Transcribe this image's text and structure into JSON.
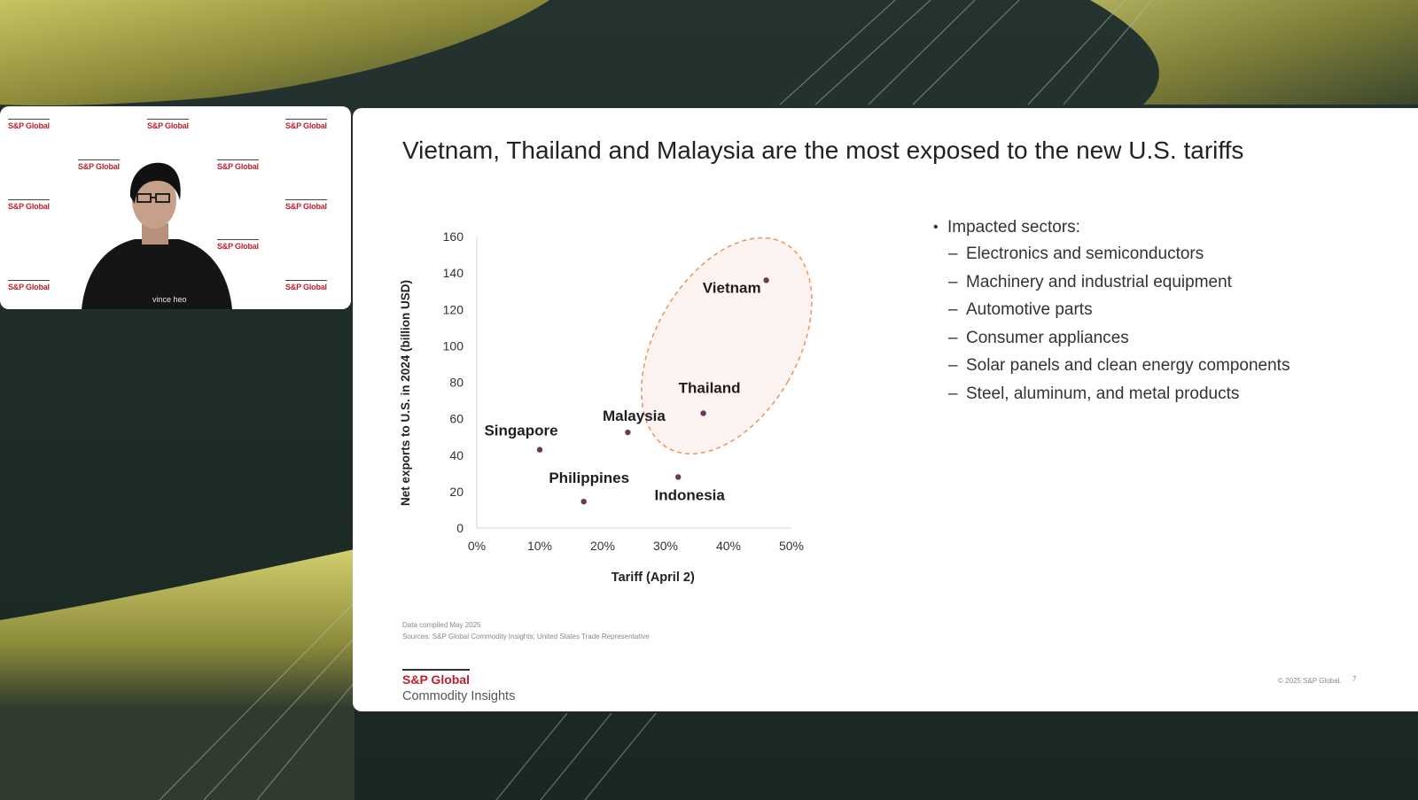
{
  "meeting": {
    "presenter_name": "vince heo",
    "logo_text": "S&P Global"
  },
  "slide": {
    "title": "Vietnam, Thailand and Malaysia are the most exposed to the new U.S. tariffs",
    "bullets": {
      "heading": "Impacted sectors:",
      "items": [
        "Electronics and semiconductors",
        "Machinery and industrial equipment",
        "Automotive parts",
        "Consumer appliances",
        "Solar panels and clean energy components",
        "Steel, aluminum, and metal products"
      ]
    },
    "footnotes": {
      "date": "Data compiled May 2025",
      "sources": "Sources: S&P Global Commodity Insights; United States Trade Representative"
    },
    "brand": {
      "name": "S&P Global",
      "sub": "Commodity Insights"
    },
    "copyright": "© 2025 S&P Global.",
    "page_number": "7"
  },
  "colors": {
    "brand_red": "#c0202c",
    "point": "#6b3856",
    "highlight_fill": "#fdf3f1",
    "highlight_stroke": "#e8955a"
  },
  "chart_data": {
    "type": "scatter",
    "xlabel": "Tariff (April 2)",
    "ylabel": "Net exports to U.S. in 2024 (billion USD)",
    "xlim": [
      0,
      0.5
    ],
    "ylim": [
      0,
      160
    ],
    "xticks": [
      0,
      0.1,
      0.2,
      0.3,
      0.4,
      0.5
    ],
    "xtick_labels": [
      "0%",
      "10%",
      "20%",
      "30%",
      "40%",
      "50%"
    ],
    "yticks": [
      0,
      20,
      40,
      60,
      80,
      100,
      120,
      140,
      160
    ],
    "ytick_labels": [
      "0",
      "20",
      "40",
      "60",
      "80",
      "100",
      "120",
      "140",
      "160"
    ],
    "grid": false,
    "points": [
      {
        "label": "Vietnam",
        "x": 0.46,
        "y": 136
      },
      {
        "label": "Thailand",
        "x": 0.36,
        "y": 63
      },
      {
        "label": "Malaysia",
        "x": 0.24,
        "y": 52.5
      },
      {
        "label": "Singapore",
        "x": 0.1,
        "y": 43
      },
      {
        "label": "Indonesia",
        "x": 0.32,
        "y": 28
      },
      {
        "label": "Philippines",
        "x": 0.17,
        "y": 14.5
      }
    ],
    "highlighted": [
      "Vietnam",
      "Thailand",
      "Malaysia"
    ]
  }
}
